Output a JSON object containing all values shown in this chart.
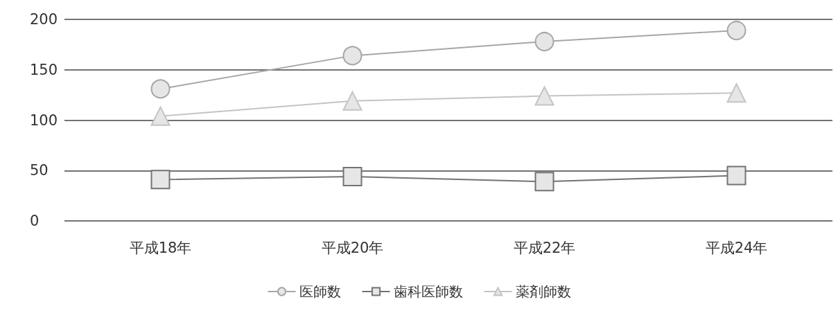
{
  "chart_data": {
    "type": "line",
    "categories": [
      "平成18年",
      "平成20年",
      "平成22年",
      "平成24年"
    ],
    "series": [
      {
        "name": "医師数",
        "color": "#a6a6a6",
        "marker": "circle",
        "values": [
          131,
          164,
          178,
          189
        ]
      },
      {
        "name": "歯科医師数",
        "color": "#737373",
        "marker": "square",
        "values": [
          41,
          44,
          39,
          45
        ]
      },
      {
        "name": "薬剤師数",
        "color": "#c4c4c4",
        "marker": "triangle",
        "values": [
          104,
          119,
          124,
          127
        ]
      }
    ],
    "ylim": [
      0,
      200
    ],
    "yticks": [
      0,
      50,
      100,
      150,
      200
    ],
    "grid": "y",
    "legend": "bottom"
  }
}
